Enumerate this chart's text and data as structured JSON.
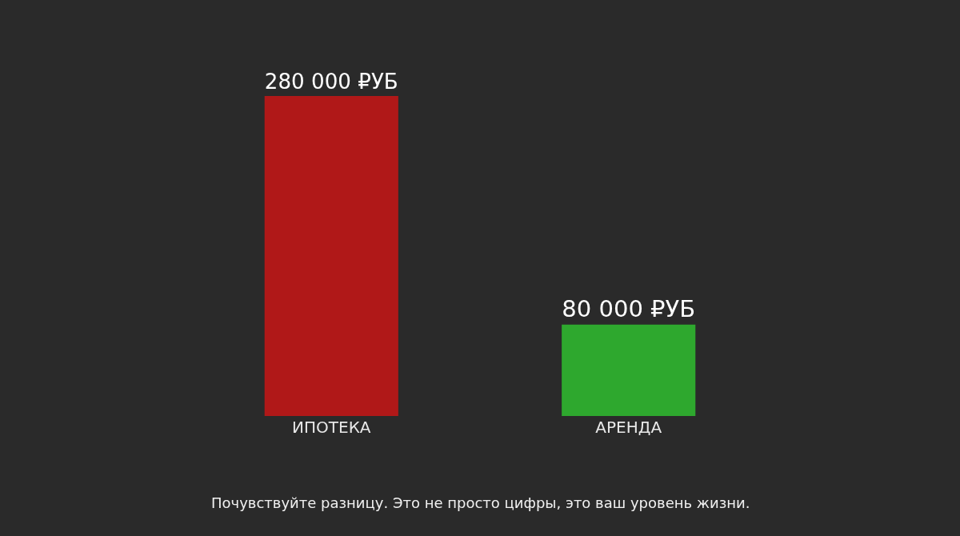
{
  "chart_data": {
    "type": "bar",
    "categories": [
      "ИПОТЕКА",
      "АРЕНДА"
    ],
    "values": [
      280000,
      80000
    ],
    "colors": [
      "#b01818",
      "#2ea82e"
    ],
    "value_labels": [
      "280 000 ₽УБ",
      "80 000 ₽УБ"
    ],
    "annotations": [
      "Почувствуйте разницу. Это не просто цифры, это ваш уровень жизни."
    ],
    "grid": false,
    "legend": false
  }
}
